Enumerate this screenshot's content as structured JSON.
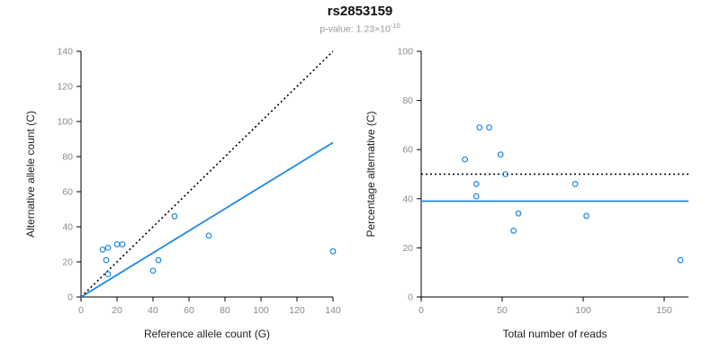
{
  "header": {
    "title": "rs2853159",
    "subtitle_prefix": "p-value: ",
    "subtitle_base": "1.23×10",
    "subtitle_exponent": "-10"
  },
  "colors": {
    "accent": "#1E88E5",
    "axis": "#000000",
    "tick_label": "#8c8c8c",
    "label": "#222222"
  },
  "chart_data": [
    {
      "id": "allele-count-scatter",
      "type": "scatter",
      "title": "",
      "xlabel": "Reference allele count (G)",
      "ylabel": "Alternative allele count (C)",
      "xlim": [
        0,
        140
      ],
      "ylim": [
        0,
        140
      ],
      "xticks": [
        0,
        20,
        40,
        60,
        80,
        100,
        120,
        140
      ],
      "yticks": [
        0,
        20,
        40,
        60,
        80,
        100,
        120,
        140
      ],
      "grid": false,
      "points": [
        [
          12,
          27
        ],
        [
          15,
          28
        ],
        [
          14,
          21
        ],
        [
          15,
          13
        ],
        [
          20,
          30
        ],
        [
          23,
          30
        ],
        [
          40,
          15
        ],
        [
          43,
          21
        ],
        [
          52,
          46
        ],
        [
          71,
          35
        ],
        [
          140,
          26
        ]
      ],
      "lines": [
        {
          "name": "identity-line",
          "style": "dotted",
          "color": "#000000",
          "x1": 0,
          "y1": 0,
          "x2": 140,
          "y2": 140
        },
        {
          "name": "fit-line",
          "style": "solid",
          "color": "#1E88E5",
          "x1": 0,
          "y1": 0,
          "x2": 140,
          "y2": 88
        }
      ]
    },
    {
      "id": "percentage-vs-reads-scatter",
      "type": "scatter",
      "title": "",
      "xlabel": "Total number of reads",
      "ylabel": "Percentage alternative (C)",
      "xlim": [
        0,
        165
      ],
      "ylim": [
        0,
        100
      ],
      "xticks": [
        0,
        50,
        100,
        150
      ],
      "yticks": [
        0,
        20,
        40,
        60,
        80,
        100
      ],
      "grid": false,
      "points": [
        [
          27,
          56
        ],
        [
          34,
          46
        ],
        [
          34,
          41
        ],
        [
          36,
          69
        ],
        [
          42,
          69
        ],
        [
          49,
          58
        ],
        [
          52,
          50
        ],
        [
          57,
          27
        ],
        [
          60,
          34
        ],
        [
          95,
          46
        ],
        [
          102,
          33
        ],
        [
          160,
          15
        ]
      ],
      "lines": [
        {
          "name": "expected-50-line",
          "style": "dotted",
          "color": "#000000",
          "x1": 0,
          "y1": 50,
          "x2": 165,
          "y2": 50
        },
        {
          "name": "mean-percentage-line",
          "style": "solid",
          "color": "#1E88E5",
          "x1": 0,
          "y1": 39,
          "x2": 165,
          "y2": 39
        }
      ]
    }
  ]
}
